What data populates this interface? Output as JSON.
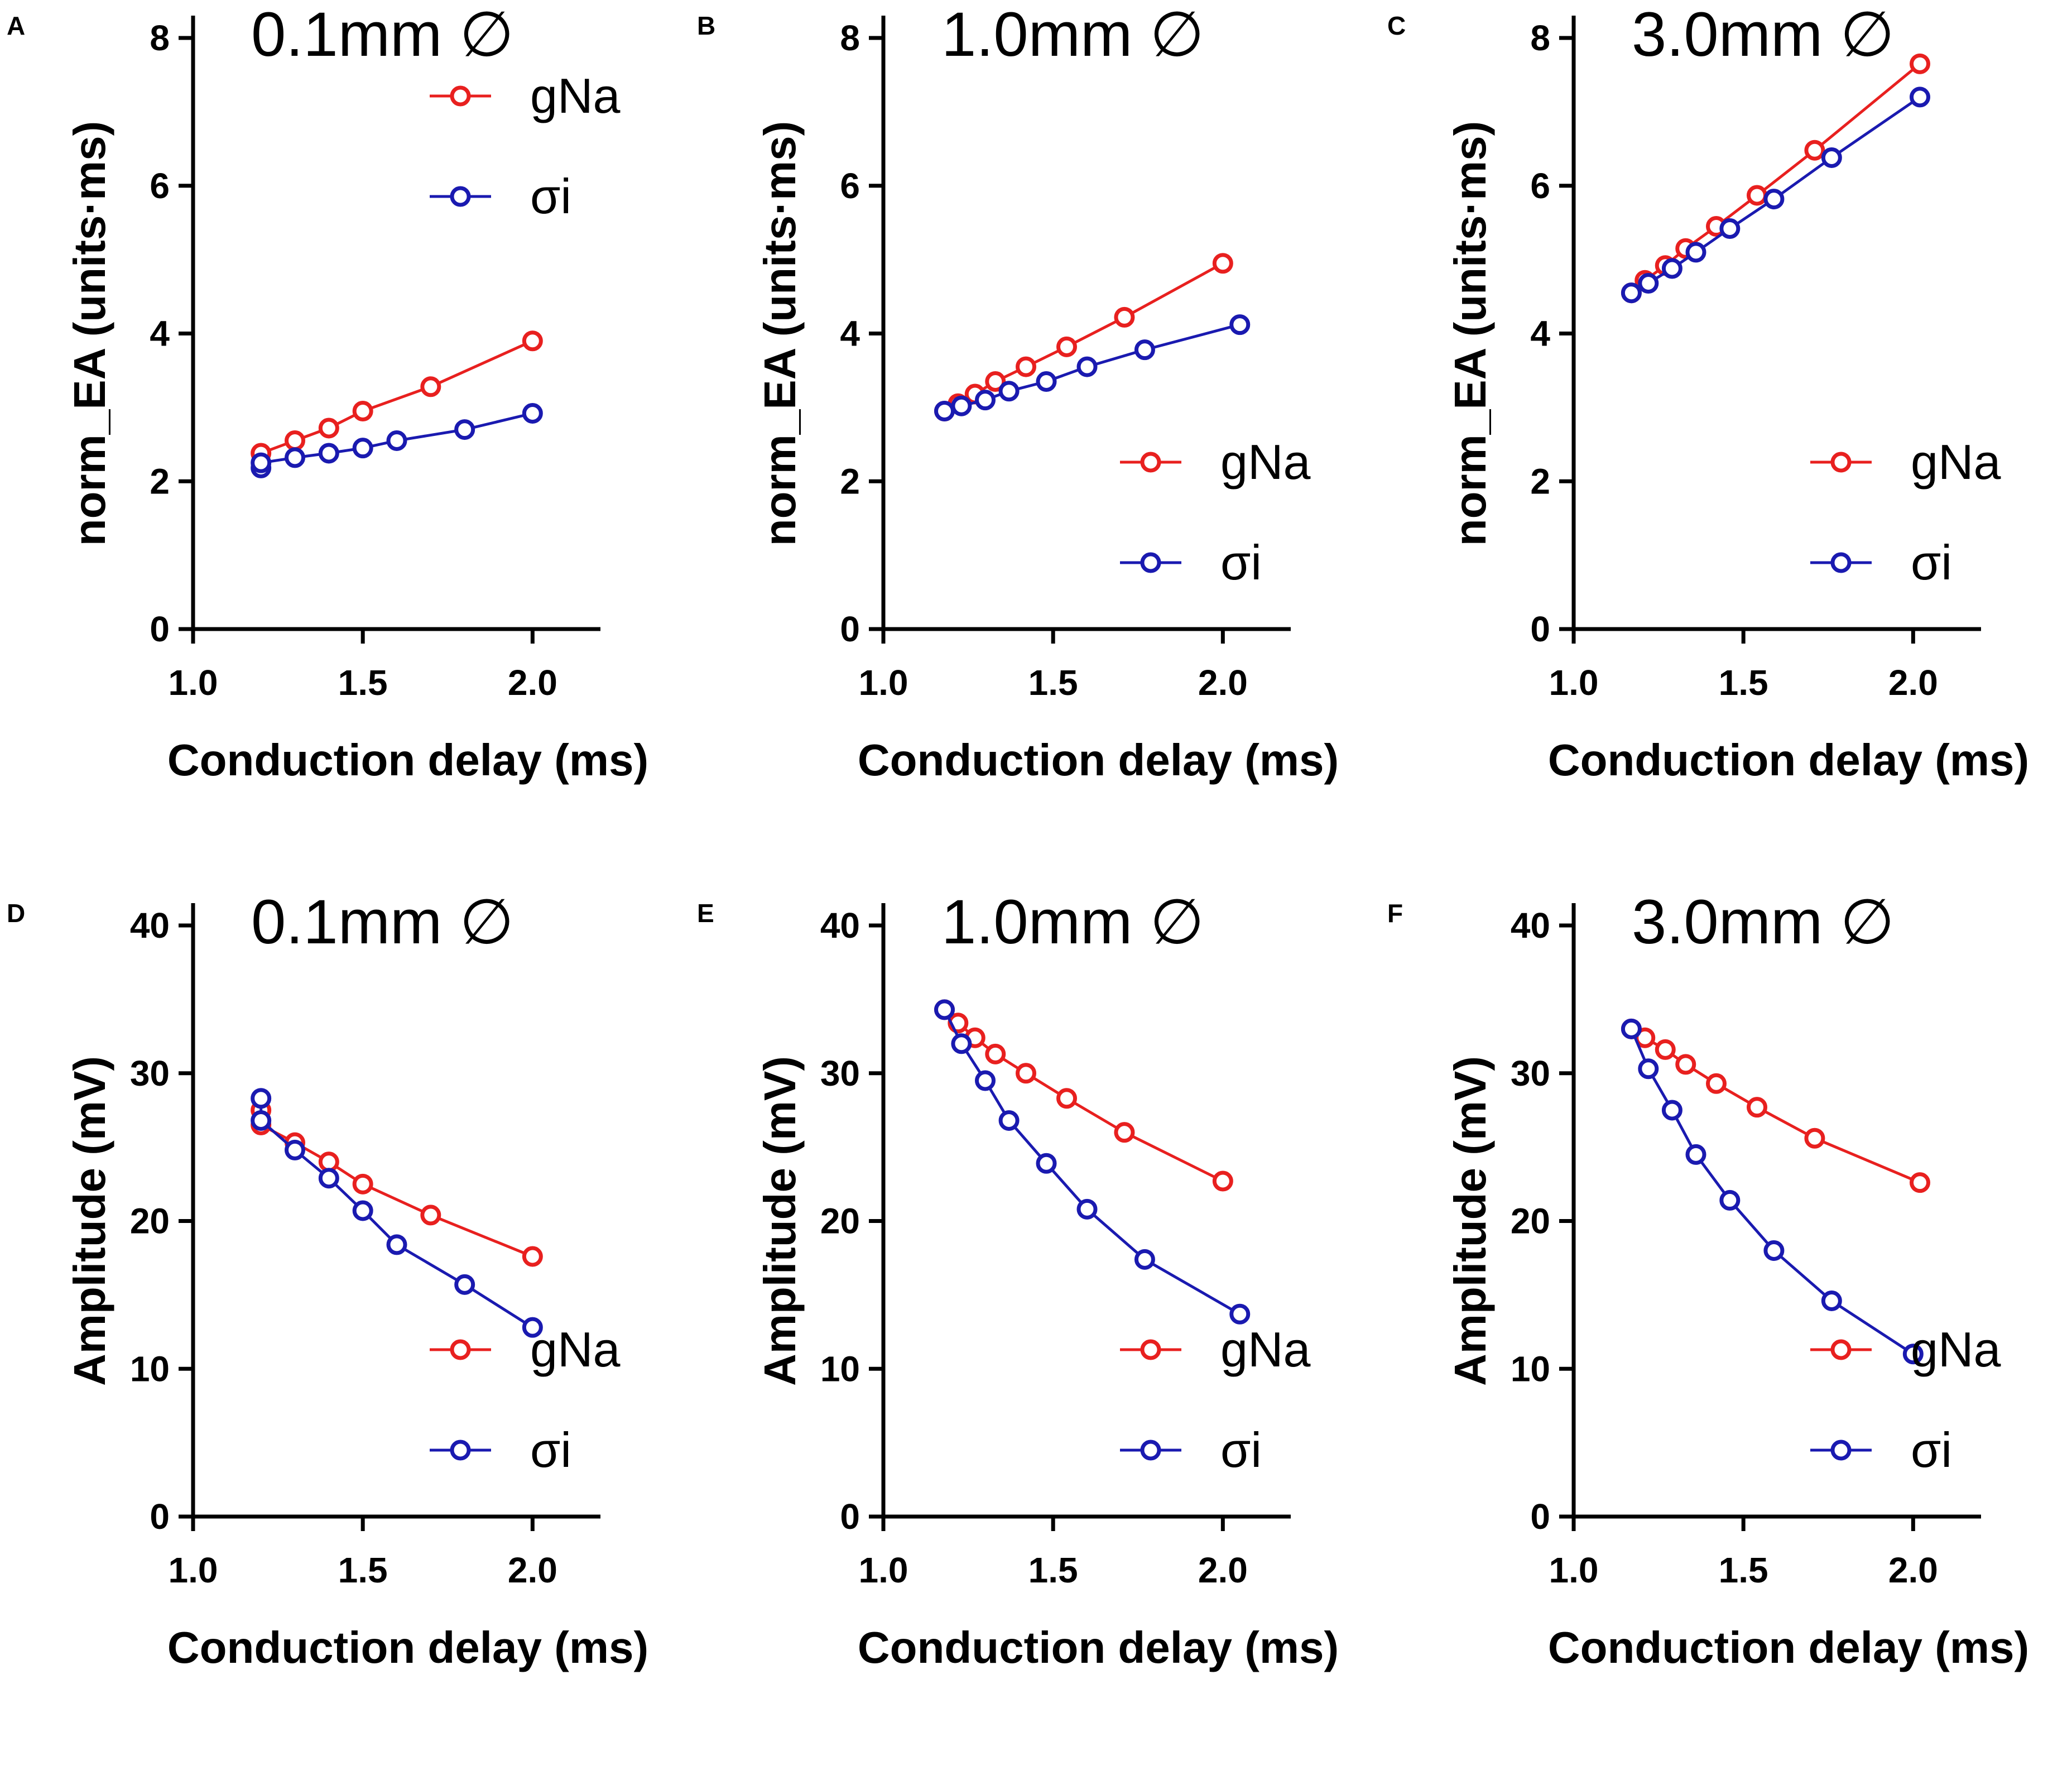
{
  "figure": {
    "colors": {
      "gNa": "#e8201f",
      "sigma": "#1a1ab0",
      "axis": "#000000"
    },
    "panels": [
      "A",
      "B",
      "C",
      "D",
      "E",
      "F"
    ]
  },
  "chart_data": [
    {
      "panel": "A",
      "type": "line",
      "title": "0.1mm ∅",
      "xlabel": "Conduction delay (ms)",
      "ylabel": "norm_EA (units·ms)",
      "xlim": [
        1.0,
        2.2
      ],
      "ylim": [
        0,
        8
      ],
      "xticks": [
        "1.0",
        "1.5",
        "2.0"
      ],
      "xtick_values": [
        1.0,
        1.5,
        2.0
      ],
      "yticks": [
        "0",
        "2",
        "4",
        "6",
        "8"
      ],
      "ytick_values": [
        0,
        2,
        4,
        6,
        8
      ],
      "legend_placement": "top-right",
      "series": [
        {
          "name": "gNa",
          "x": [
            1.2,
            1.3,
            1.4,
            1.5,
            1.7,
            2.0
          ],
          "y": [
            2.38,
            2.55,
            2.72,
            2.95,
            3.28,
            3.9
          ]
        },
        {
          "name": "σi",
          "x": [
            1.2,
            1.2,
            1.3,
            1.4,
            1.5,
            1.6,
            1.8,
            2.0
          ],
          "y": [
            2.18,
            2.25,
            2.32,
            2.38,
            2.45,
            2.55,
            2.7,
            2.92
          ]
        }
      ]
    },
    {
      "panel": "B",
      "type": "line",
      "title": "1.0mm ∅",
      "xlabel": "Conduction delay (ms)",
      "ylabel": "norm_EA (units·ms)",
      "xlim": [
        1.0,
        2.2
      ],
      "ylim": [
        0,
        8
      ],
      "xticks": [
        "1.0",
        "1.5",
        "2.0"
      ],
      "xtick_values": [
        1.0,
        1.5,
        2.0
      ],
      "yticks": [
        "0",
        "2",
        "4",
        "6",
        "8"
      ],
      "ytick_values": [
        0,
        2,
        4,
        6,
        8
      ],
      "legend_placement": "bottom-right",
      "series": [
        {
          "name": "gNa",
          "x": [
            1.18,
            1.22,
            1.27,
            1.33,
            1.42,
            1.54,
            1.71,
            2.0
          ],
          "y": [
            2.95,
            3.05,
            3.18,
            3.35,
            3.55,
            3.82,
            4.22,
            4.95
          ]
        },
        {
          "name": "σi",
          "x": [
            1.18,
            1.23,
            1.3,
            1.37,
            1.48,
            1.6,
            1.77,
            2.05
          ],
          "y": [
            2.95,
            3.02,
            3.1,
            3.22,
            3.35,
            3.55,
            3.78,
            4.12
          ]
        }
      ]
    },
    {
      "panel": "C",
      "type": "line",
      "title": "3.0mm ∅",
      "xlabel": "Conduction delay (ms)",
      "ylabel": "norm_EA (units·ms)",
      "xlim": [
        1.0,
        2.2
      ],
      "ylim": [
        0,
        8
      ],
      "xticks": [
        "1.0",
        "1.5",
        "2.0"
      ],
      "xtick_values": [
        1.0,
        1.5,
        2.0
      ],
      "yticks": [
        "0",
        "2",
        "4",
        "6",
        "8"
      ],
      "ytick_values": [
        0,
        2,
        4,
        6,
        8
      ],
      "legend_placement": "bottom-right",
      "series": [
        {
          "name": "gNa",
          "x": [
            1.17,
            1.21,
            1.27,
            1.33,
            1.42,
            1.54,
            1.71,
            2.02
          ],
          "y": [
            4.55,
            4.72,
            4.92,
            5.15,
            5.45,
            5.87,
            6.48,
            7.65
          ]
        },
        {
          "name": "σi",
          "x": [
            1.17,
            1.22,
            1.29,
            1.36,
            1.46,
            1.59,
            1.76,
            2.02
          ],
          "y": [
            4.55,
            4.68,
            4.88,
            5.1,
            5.42,
            5.82,
            6.38,
            7.2
          ]
        }
      ]
    },
    {
      "panel": "D",
      "type": "line",
      "title": "0.1mm ∅",
      "xlabel": "Conduction delay (ms)",
      "ylabel": "Amplitude (mV)",
      "xlim": [
        1.0,
        2.2
      ],
      "ylim": [
        0,
        40
      ],
      "xticks": [
        "1.0",
        "1.5",
        "2.0"
      ],
      "xtick_values": [
        1.0,
        1.5,
        2.0
      ],
      "yticks": [
        "0",
        "10",
        "20",
        "30",
        "40"
      ],
      "ytick_values": [
        0,
        10,
        20,
        30,
        40
      ],
      "legend_placement": "bottom-right",
      "series": [
        {
          "name": "gNa",
          "x": [
            1.2,
            1.2,
            1.3,
            1.4,
            1.5,
            1.7,
            2.0
          ],
          "y": [
            27.5,
            26.5,
            25.3,
            24.0,
            22.5,
            20.4,
            17.6
          ]
        },
        {
          "name": "σi",
          "x": [
            1.2,
            1.2,
            1.3,
            1.4,
            1.5,
            1.6,
            1.8,
            2.0
          ],
          "y": [
            28.3,
            26.8,
            24.8,
            22.9,
            20.7,
            18.4,
            15.7,
            12.8
          ]
        }
      ]
    },
    {
      "panel": "E",
      "type": "line",
      "title": "1.0mm ∅",
      "xlabel": "Conduction delay (ms)",
      "ylabel": "Amplitude (mV)",
      "xlim": [
        1.0,
        2.2
      ],
      "ylim": [
        0,
        40
      ],
      "xticks": [
        "1.0",
        "1.5",
        "2.0"
      ],
      "xtick_values": [
        1.0,
        1.5,
        2.0
      ],
      "yticks": [
        "0",
        "10",
        "20",
        "30",
        "40"
      ],
      "ytick_values": [
        0,
        10,
        20,
        30,
        40
      ],
      "legend_placement": "bottom-right",
      "series": [
        {
          "name": "gNa",
          "x": [
            1.18,
            1.22,
            1.27,
            1.33,
            1.42,
            1.54,
            1.71,
            2.0
          ],
          "y": [
            34.3,
            33.4,
            32.4,
            31.3,
            30.0,
            28.3,
            26.0,
            22.7
          ]
        },
        {
          "name": "σi",
          "x": [
            1.18,
            1.23,
            1.3,
            1.37,
            1.48,
            1.6,
            1.77,
            2.05
          ],
          "y": [
            34.3,
            32.0,
            29.5,
            26.8,
            23.9,
            20.8,
            17.4,
            13.7
          ]
        }
      ]
    },
    {
      "panel": "F",
      "type": "line",
      "title": "3.0mm ∅",
      "xlabel": "Conduction delay (ms)",
      "ylabel": "Amplitude (mV)",
      "xlim": [
        1.0,
        2.2
      ],
      "ylim": [
        0,
        40
      ],
      "xticks": [
        "1.0",
        "1.5",
        "2.0"
      ],
      "xtick_values": [
        1.0,
        1.5,
        2.0
      ],
      "yticks": [
        "0",
        "10",
        "20",
        "30",
        "40"
      ],
      "ytick_values": [
        0,
        10,
        20,
        30,
        40
      ],
      "legend_placement": "bottom-right",
      "series": [
        {
          "name": "gNa",
          "x": [
            1.17,
            1.21,
            1.27,
            1.33,
            1.42,
            1.54,
            1.71,
            2.02
          ],
          "y": [
            33.0,
            32.4,
            31.6,
            30.6,
            29.3,
            27.7,
            25.6,
            22.6
          ]
        },
        {
          "name": "σi",
          "x": [
            1.17,
            1.22,
            1.29,
            1.36,
            1.46,
            1.59,
            1.76,
            2.0
          ],
          "y": [
            33.0,
            30.3,
            27.5,
            24.5,
            21.4,
            18.0,
            14.6,
            11.0
          ]
        }
      ]
    }
  ]
}
